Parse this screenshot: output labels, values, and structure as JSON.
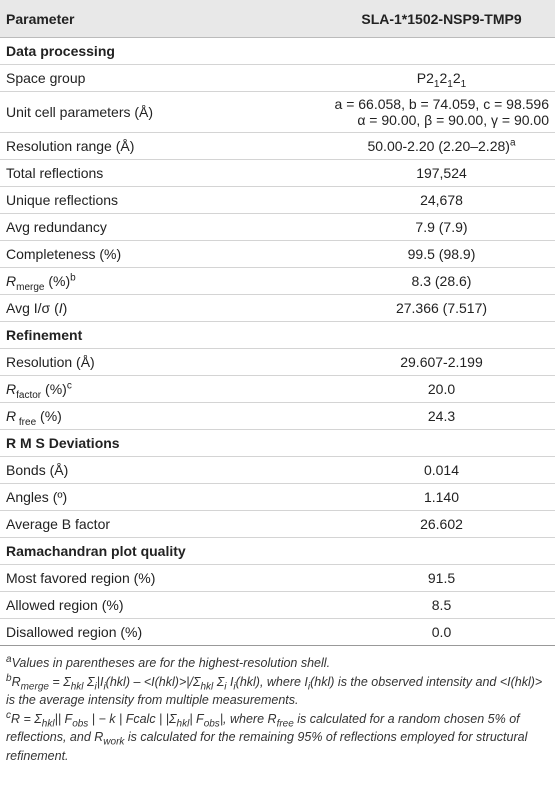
{
  "table": {
    "header": [
      "Parameter",
      "SLA-1*1502-NSP9-TMP9"
    ],
    "rows": [
      [
        "Data processing"
      ],
      [
        "Space group",
        [
          "P2",
          "1",
          "2",
          "1",
          "2",
          "1"
        ]
      ],
      [
        "Unit cell parameters (Å)",
        [
          "a = 66.058, b = 74.059, c = 98.596",
          "α = 90.00, β = 90.00, γ = 90.00"
        ]
      ],
      [
        "Resolution range (Å)",
        [
          "50.00-2.20 (2.20–2.28)",
          "a"
        ]
      ],
      [
        "Total reflections",
        "197,524"
      ],
      [
        "Unique reflections",
        "24,678"
      ],
      [
        "Avg redundancy",
        "7.9 (7.9)"
      ],
      [
        "Completeness (%)",
        "99.5 (98.9)"
      ],
      [
        [
          "R",
          "merge",
          " (%)",
          "b"
        ],
        "8.3 (28.6)"
      ],
      [
        [
          "Avg I/σ (",
          "I",
          ")"
        ],
        "27.366 (7.517)"
      ],
      [
        "Refinement"
      ],
      [
        "Resolution (Å)",
        "29.607-2.199"
      ],
      [
        [
          "R",
          "factor",
          " (%)",
          "c"
        ],
        "20.0"
      ],
      [
        [
          "R",
          " free",
          " (%)"
        ],
        "24.3"
      ],
      [
        "R M S Deviations"
      ],
      [
        "Bonds (Å)",
        "0.014"
      ],
      [
        "Angles (º)",
        "1.140"
      ],
      [
        "Average B factor",
        "26.602"
      ],
      [
        "Ramachandran plot quality"
      ],
      [
        "Most favored region (%)",
        "91.5"
      ],
      [
        "Allowed region (%)",
        "8.5"
      ],
      [
        "Disallowed region (%)",
        "0.0"
      ]
    ],
    "footnotes": [
      [
        "a",
        "Values in parentheses are for the highest-resolution shell."
      ],
      [
        "b",
        "R",
        "merge",
        " = Σ",
        "hkl",
        " Σ",
        "i",
        "|I",
        "i",
        "(hkl) – <I(hkl)>|/Σ",
        "hkl",
        " Σ",
        "i",
        " I",
        "i",
        "(hkl), where I",
        "i",
        "(hkl) is the observed intensity and <I(hkl)> is the average intensity from multiple measurements."
      ],
      [
        "c",
        "R = Σ",
        "hkl",
        "|| F",
        "obs",
        " | − k | Fcalc | |Σ",
        "hkl",
        "| F",
        "obs",
        "|, where R",
        "free",
        " is calculated for a random chosen 5% of reflections, and R",
        "work",
        " is calculated for the remaining 95% of reflections employed for structural refinement."
      ]
    ]
  }
}
